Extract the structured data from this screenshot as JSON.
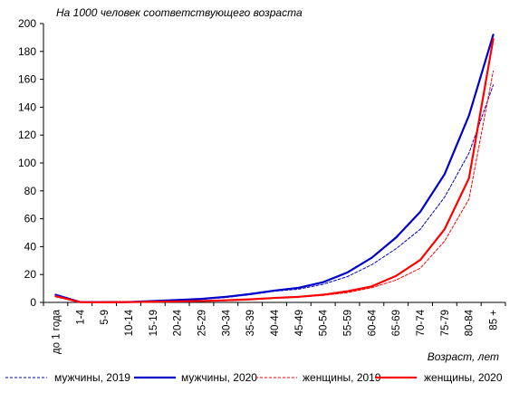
{
  "chart_data": {
    "type": "line",
    "subtitle": "На 1000 человек соответствующего возраста",
    "xlabel": "Возраст, лет",
    "ylabel": "",
    "ylim": [
      0,
      200
    ],
    "yticks": [
      0,
      20,
      40,
      60,
      80,
      100,
      120,
      140,
      160,
      180,
      200
    ],
    "categories": [
      "до 1 года",
      "1-4",
      "5-9",
      "10-14",
      "15-19",
      "20-24",
      "25-29",
      "30-34",
      "35-39",
      "40-44",
      "45-49",
      "50-54",
      "55-59",
      "60-64",
      "65-69",
      "70-74",
      "75-79",
      "80-84",
      "85 +"
    ],
    "grid": false,
    "legend_position": "bottom",
    "series": [
      {
        "name": "мужчины, 2019",
        "color": "#0000cc",
        "dash": "dashed",
        "width": "thin",
        "values": [
          5.5,
          0.3,
          0.2,
          0.3,
          0.9,
          1.5,
          2.2,
          3.5,
          5.5,
          8.0,
          9.5,
          13.0,
          18.5,
          27.0,
          38.5,
          52.5,
          75.5,
          107.0,
          156.0
        ]
      },
      {
        "name": "мужчины, 2020",
        "color": "#0000cc",
        "dash": "solid",
        "width": "thick",
        "values": [
          5.5,
          0.3,
          0.2,
          0.3,
          1.0,
          1.7,
          2.5,
          4.0,
          6.0,
          8.5,
          10.5,
          14.5,
          21.5,
          32.0,
          46.5,
          65.0,
          92.0,
          134.0,
          192.0
        ]
      },
      {
        "name": "женщины, 2019",
        "color": "#ff0000",
        "dash": "dashed",
        "width": "thin",
        "values": [
          4.0,
          0.2,
          0.1,
          0.2,
          0.4,
          0.6,
          0.9,
          1.3,
          2.0,
          3.0,
          3.8,
          5.0,
          7.0,
          10.5,
          16.0,
          24.5,
          44.0,
          74.0,
          166.0
        ]
      },
      {
        "name": "женщины, 2020",
        "color": "#ff0000",
        "dash": "solid",
        "width": "thick",
        "values": [
          4.5,
          0.2,
          0.1,
          0.2,
          0.5,
          0.7,
          1.0,
          1.5,
          2.2,
          3.2,
          4.0,
          5.5,
          8.0,
          11.5,
          19.0,
          30.5,
          52.5,
          89.0,
          189.0
        ]
      }
    ]
  }
}
